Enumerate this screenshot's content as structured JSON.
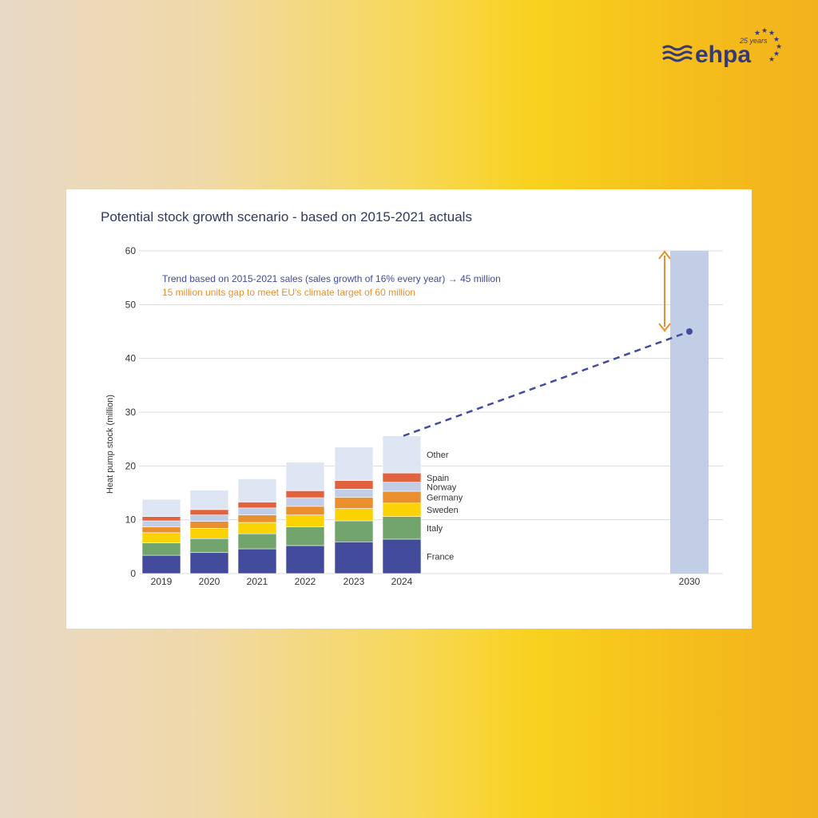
{
  "logo": {
    "text": "ehpa",
    "subtext": "25 years"
  },
  "chart_data": {
    "type": "bar",
    "stacked": true,
    "title": "Potential stock growth scenario - based on 2015-2021 actuals",
    "ylabel": "Heat pump stock (million)",
    "xlabel": "",
    "ylim": [
      0,
      60
    ],
    "yticks": [
      0,
      10,
      20,
      30,
      40,
      50,
      60
    ],
    "grid": true,
    "categories": [
      "2019",
      "2020",
      "2021",
      "2022",
      "2023",
      "2024"
    ],
    "series": [
      {
        "name": "France",
        "color": "#434b9c",
        "values": [
          3.4,
          3.9,
          4.6,
          5.2,
          5.9,
          6.4
        ]
      },
      {
        "name": "Italy",
        "color": "#72a46d",
        "values": [
          2.3,
          2.6,
          2.8,
          3.5,
          3.9,
          4.2
        ]
      },
      {
        "name": "Sweden",
        "color": "#fbd302",
        "values": [
          1.9,
          1.9,
          2.1,
          2.2,
          2.3,
          2.5
        ]
      },
      {
        "name": "Germany",
        "color": "#ea8f2d",
        "values": [
          1.1,
          1.3,
          1.4,
          1.6,
          2.1,
          2.2
        ]
      },
      {
        "name": "Norway",
        "color": "#c1cde6",
        "values": [
          1.1,
          1.2,
          1.3,
          1.6,
          1.5,
          1.7
        ]
      },
      {
        "name": "Spain",
        "color": "#e3623e",
        "values": [
          0.8,
          1.0,
          1.1,
          1.3,
          1.6,
          1.7
        ]
      },
      {
        "name": "Other",
        "color": "#dfe6f3",
        "values": [
          3.2,
          3.6,
          4.3,
          5.3,
          6.2,
          6.9
        ]
      }
    ],
    "target_bar": {
      "category": "2030",
      "value": 60,
      "color": "#c2cde6"
    },
    "trend": {
      "from": {
        "x": "2024",
        "y": 25.6
      },
      "to": {
        "x": "2030",
        "y": 45
      },
      "color": "#434b9c",
      "style": "dashed"
    },
    "gap_arrow": {
      "from": 60,
      "to": 45,
      "color": "#ea8f2d"
    },
    "annotations": [
      {
        "text": "Trend based on 2015-2021 sales (sales growth of 16% every year) → 45 million",
        "color": "#434b9c"
      },
      {
        "text": "15 million units gap to meet EU's climate target of 60 million",
        "color": "#ea8f2d"
      }
    ]
  }
}
